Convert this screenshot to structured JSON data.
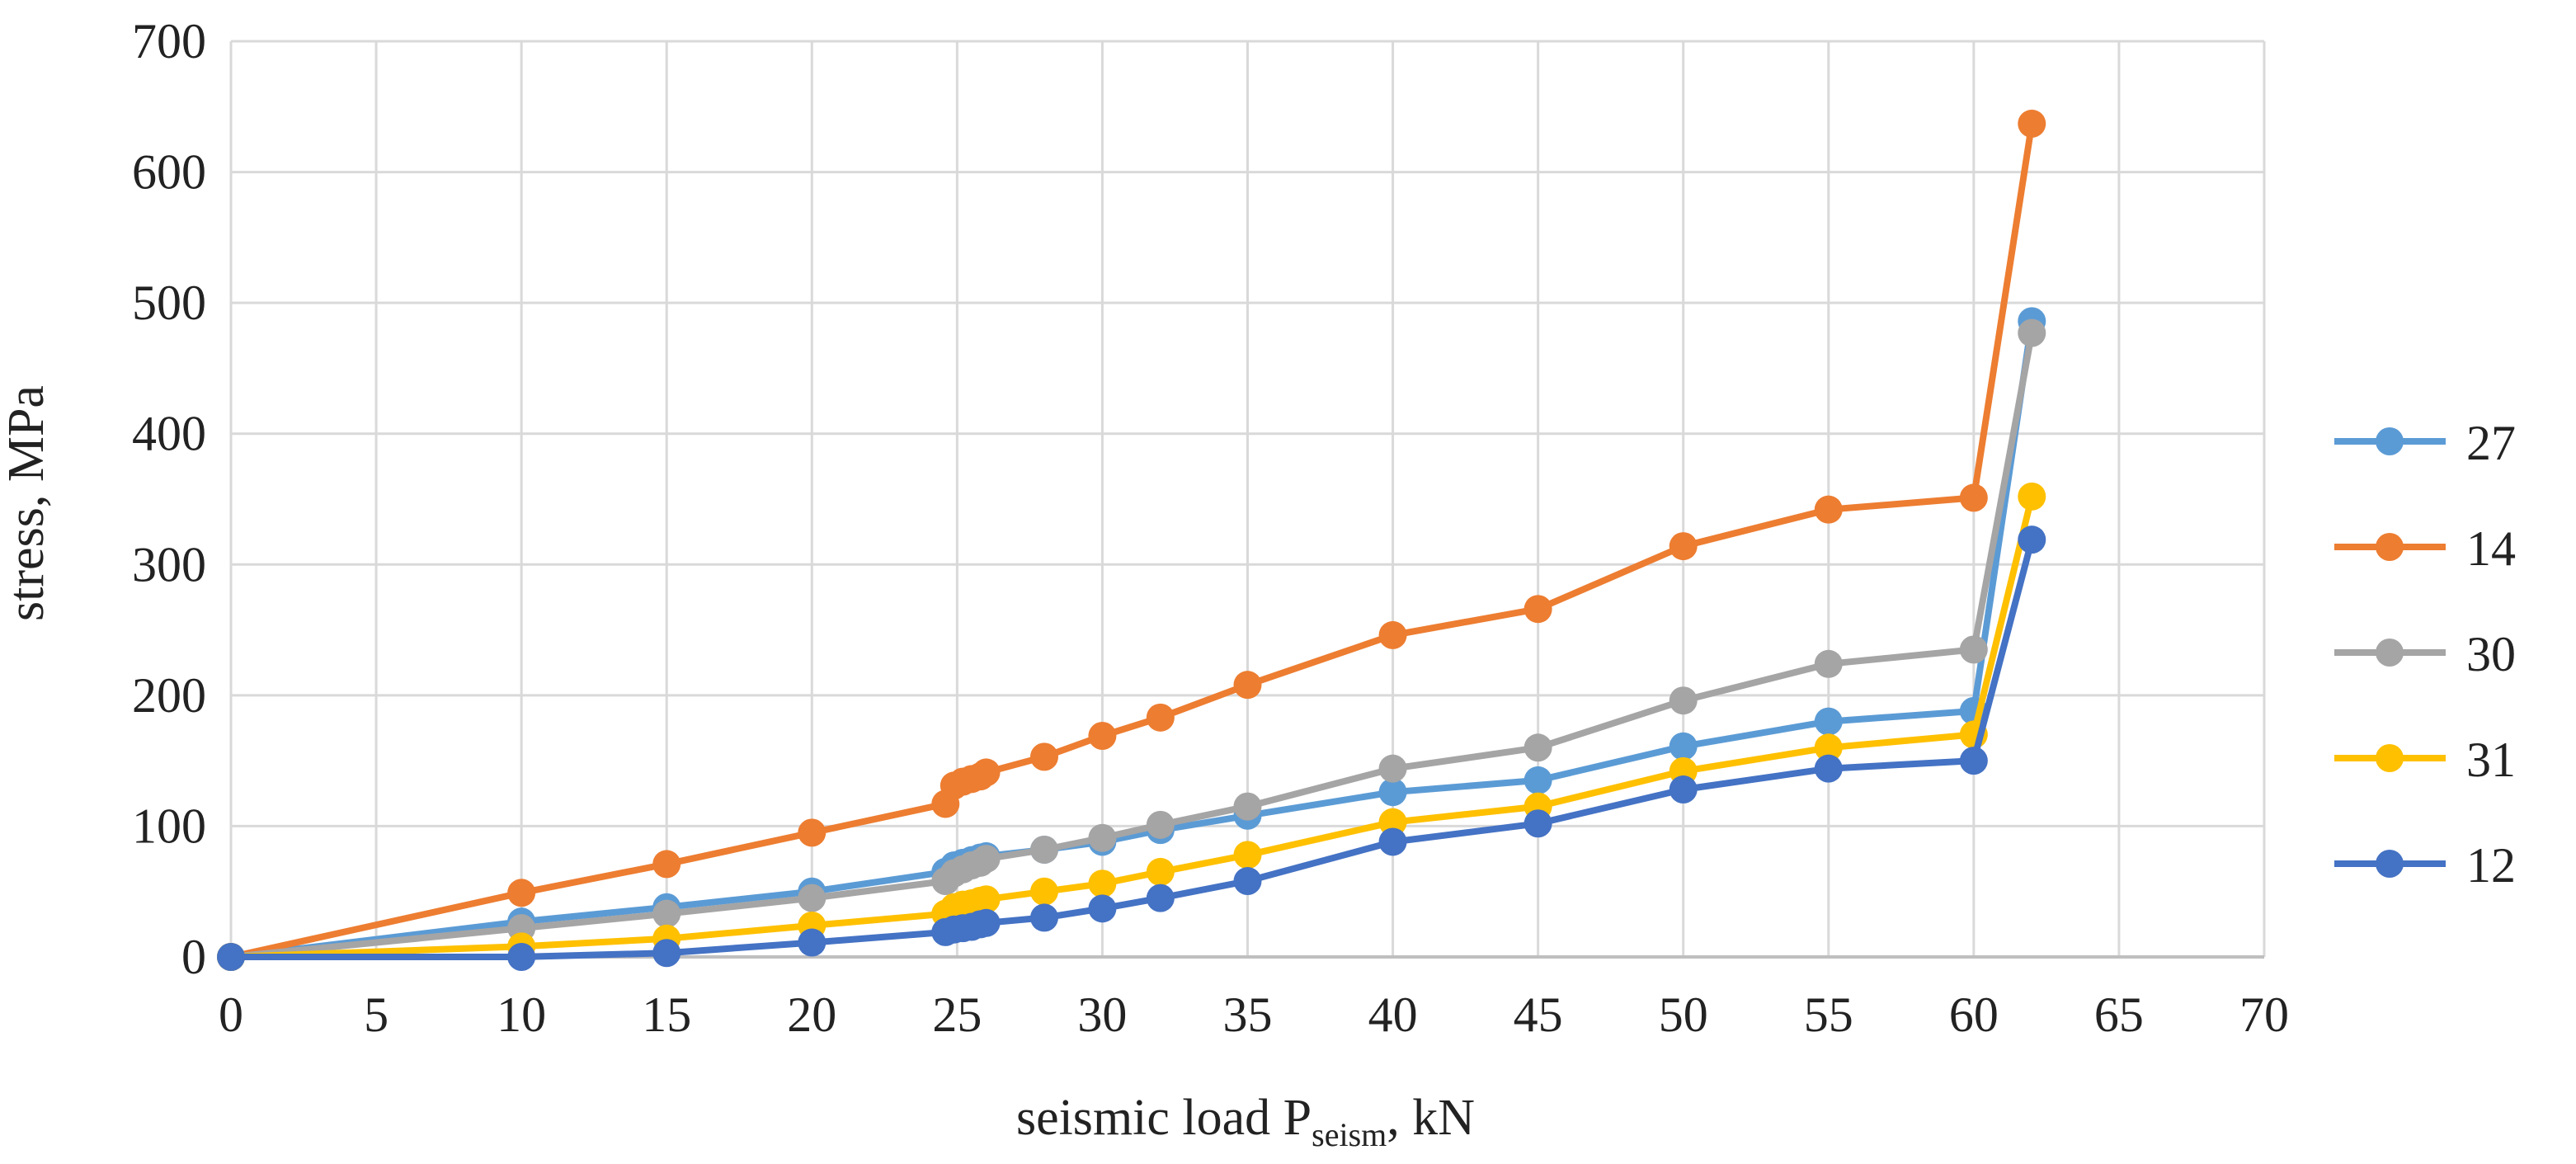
{
  "chart_data": {
    "type": "line",
    "title": "",
    "xlabel": "seismic load P",
    "xlabel_sub": "seism",
    "xlabel_unit": ", kN",
    "ylabel": "stress, MPa",
    "xlim": [
      0,
      70
    ],
    "ylim": [
      0,
      700
    ],
    "x_ticks": [
      0,
      5,
      10,
      15,
      20,
      25,
      30,
      35,
      40,
      45,
      50,
      55,
      60,
      65,
      70
    ],
    "y_ticks": [
      0,
      100,
      200,
      300,
      400,
      500,
      600,
      700
    ],
    "grid": true,
    "legend_position": "right",
    "series": [
      {
        "name": "27",
        "color": "#5B9BD5",
        "points": [
          [
            0,
            0
          ],
          [
            10,
            27
          ],
          [
            15,
            38
          ],
          [
            20,
            50
          ],
          [
            24.6,
            65
          ],
          [
            24.9,
            70
          ],
          [
            25.2,
            72
          ],
          [
            25.5,
            74
          ],
          [
            25.8,
            76
          ],
          [
            26,
            77
          ],
          [
            28,
            82
          ],
          [
            30,
            88
          ],
          [
            32,
            97
          ],
          [
            35,
            108
          ],
          [
            40,
            126
          ],
          [
            45,
            135
          ],
          [
            50,
            161
          ],
          [
            55,
            180
          ],
          [
            60,
            188
          ],
          [
            62,
            486
          ]
        ]
      },
      {
        "name": "14",
        "color": "#ED7D31",
        "points": [
          [
            0,
            0
          ],
          [
            10,
            49
          ],
          [
            15,
            71
          ],
          [
            20,
            95
          ],
          [
            24.6,
            117
          ],
          [
            24.9,
            131
          ],
          [
            25.2,
            134
          ],
          [
            25.5,
            136
          ],
          [
            25.8,
            138
          ],
          [
            26,
            141
          ],
          [
            28,
            153
          ],
          [
            30,
            169
          ],
          [
            32,
            183
          ],
          [
            35,
            208
          ],
          [
            40,
            246
          ],
          [
            45,
            266
          ],
          [
            50,
            314
          ],
          [
            55,
            342
          ],
          [
            60,
            351
          ],
          [
            62,
            637
          ]
        ]
      },
      {
        "name": "30",
        "color": "#A5A5A5",
        "points": [
          [
            0,
            0
          ],
          [
            10,
            22
          ],
          [
            15,
            33
          ],
          [
            20,
            45
          ],
          [
            24.6,
            58
          ],
          [
            24.9,
            64
          ],
          [
            25.2,
            67
          ],
          [
            25.5,
            70
          ],
          [
            25.8,
            72
          ],
          [
            26,
            75
          ],
          [
            28,
            82
          ],
          [
            30,
            91
          ],
          [
            32,
            101
          ],
          [
            35,
            115
          ],
          [
            40,
            144
          ],
          [
            45,
            160
          ],
          [
            50,
            196
          ],
          [
            55,
            224
          ],
          [
            60,
            235
          ],
          [
            62,
            477
          ]
        ]
      },
      {
        "name": "31",
        "color": "#FFC000",
        "points": [
          [
            0,
            0
          ],
          [
            10,
            8
          ],
          [
            15,
            14
          ],
          [
            20,
            24
          ],
          [
            24.6,
            33
          ],
          [
            24.9,
            38
          ],
          [
            25.2,
            40
          ],
          [
            25.5,
            41
          ],
          [
            25.8,
            43
          ],
          [
            26,
            44
          ],
          [
            28,
            50
          ],
          [
            30,
            56
          ],
          [
            32,
            65
          ],
          [
            35,
            78
          ],
          [
            40,
            103
          ],
          [
            45,
            115
          ],
          [
            50,
            142
          ],
          [
            55,
            160
          ],
          [
            60,
            170
          ],
          [
            62,
            352
          ]
        ]
      },
      {
        "name": "12",
        "color": "#4472C4",
        "points": [
          [
            0,
            0
          ],
          [
            10,
            0
          ],
          [
            15,
            3
          ],
          [
            20,
            11
          ],
          [
            24.6,
            19
          ],
          [
            24.9,
            21
          ],
          [
            25.2,
            22
          ],
          [
            25.5,
            23
          ],
          [
            25.8,
            25
          ],
          [
            26,
            26
          ],
          [
            28,
            30
          ],
          [
            30,
            37
          ],
          [
            32,
            45
          ],
          [
            35,
            58
          ],
          [
            40,
            88
          ],
          [
            45,
            102
          ],
          [
            50,
            128
          ],
          [
            55,
            144
          ],
          [
            60,
            150
          ],
          [
            62,
            319
          ]
        ]
      }
    ]
  }
}
